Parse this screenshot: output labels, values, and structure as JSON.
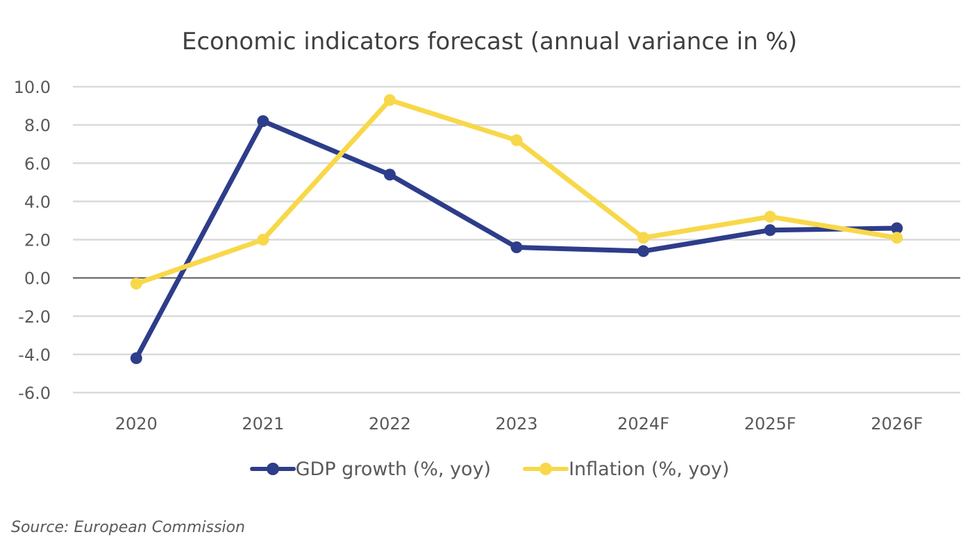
{
  "chart_data": {
    "type": "line",
    "title": "Economic indicators forecast (annual variance in %)",
    "categories": [
      "2020",
      "2021",
      "2022",
      "2023",
      "2024F",
      "2025F",
      "2026F"
    ],
    "y_ticks": [
      "10.0",
      "8.0",
      "6.0",
      "4.0",
      "2.0",
      "0.0",
      "-2.0",
      "-4.0",
      "-6.0"
    ],
    "ylim": [
      -6,
      10
    ],
    "grid": true,
    "legend_position": "bottom",
    "series": [
      {
        "name": "GDP growth (%, yoy)",
        "color": "#2e3d8a",
        "values": [
          -4.2,
          8.2,
          5.4,
          1.6,
          1.4,
          2.5,
          2.6
        ]
      },
      {
        "name": "Inflation (%, yoy)",
        "color": "#f8d84a",
        "values": [
          -0.3,
          2.0,
          9.3,
          7.2,
          2.1,
          3.2,
          2.1
        ]
      }
    ]
  },
  "source": "Source: European Commission"
}
